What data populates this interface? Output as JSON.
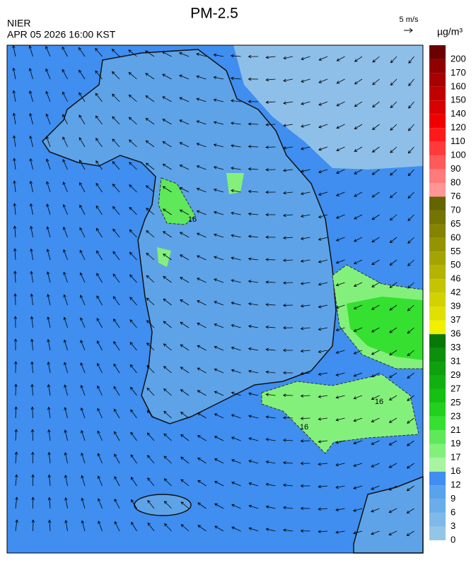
{
  "header": {
    "title": "PM-2.5",
    "agency": "NIER",
    "timestamp": "APR 05 2026 16:00 KST",
    "wind_scale": "5 m/s"
  },
  "legend": {
    "unit": "µg/m³",
    "ticks": [
      0,
      3,
      6,
      9,
      12,
      16,
      17,
      19,
      21,
      23,
      25,
      27,
      29,
      31,
      33,
      36,
      37,
      39,
      42,
      46,
      50,
      55,
      60,
      65,
      70,
      76,
      80,
      90,
      100,
      110,
      120,
      140,
      150,
      160,
      170,
      200
    ],
    "colors": [
      "#93c6e6",
      "#80b8ea",
      "#6badea",
      "#5aa2ec",
      "#3f8ef0",
      "#a8f4a0",
      "#84f07c",
      "#5ee85a",
      "#36e030",
      "#22d01e",
      "#14c012",
      "#10b010",
      "#0ea00e",
      "#0c900c",
      "#087808",
      "#f0f000",
      "#e0e000",
      "#d2d200",
      "#c4c400",
      "#b4b400",
      "#a4a400",
      "#949400",
      "#848400",
      "#747400",
      "#646400",
      "#ff9696",
      "#ff7a7a",
      "#ff5a5a",
      "#ff3a3a",
      "#ff1a1a",
      "#f00000",
      "#d80000",
      "#c00000",
      "#a80000",
      "#900000",
      "#6c0000"
    ]
  },
  "contour_labels": [
    "16",
    "16",
    "16"
  ]
}
